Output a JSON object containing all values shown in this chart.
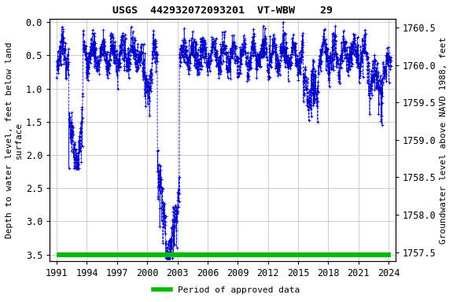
{
  "title": "USGS  442932072093201  VT-WBW    29",
  "ylabel_left": "Depth to water level, feet below land\nsurface",
  "ylabel_right": "Groundwater level above NAVD 1988, feet",
  "xlabel": "",
  "ylim_left": [
    3.6,
    -0.05
  ],
  "ylim_right": [
    1757.38,
    1760.62
  ],
  "yticks_left": [
    0.0,
    0.5,
    1.0,
    1.5,
    2.0,
    2.5,
    3.0,
    3.5
  ],
  "yticks_right": [
    1757.5,
    1758.0,
    1758.5,
    1759.0,
    1759.5,
    1760.0,
    1760.5
  ],
  "xticks": [
    1991,
    1994,
    1997,
    2000,
    2003,
    2006,
    2009,
    2012,
    2015,
    2018,
    2021,
    2024
  ],
  "xlim": [
    1990.3,
    2024.7
  ],
  "data_color": "#0000cc",
  "approved_color": "#00bb00",
  "approved_y": 3.5,
  "approved_xstart": 1991.0,
  "approved_xend": 2024.2,
  "legend_label": "Period of approved data",
  "background_color": "#ffffff",
  "grid_color": "#bbbbbb",
  "title_fontsize": 9.5,
  "label_fontsize": 8,
  "tick_fontsize": 8.5
}
